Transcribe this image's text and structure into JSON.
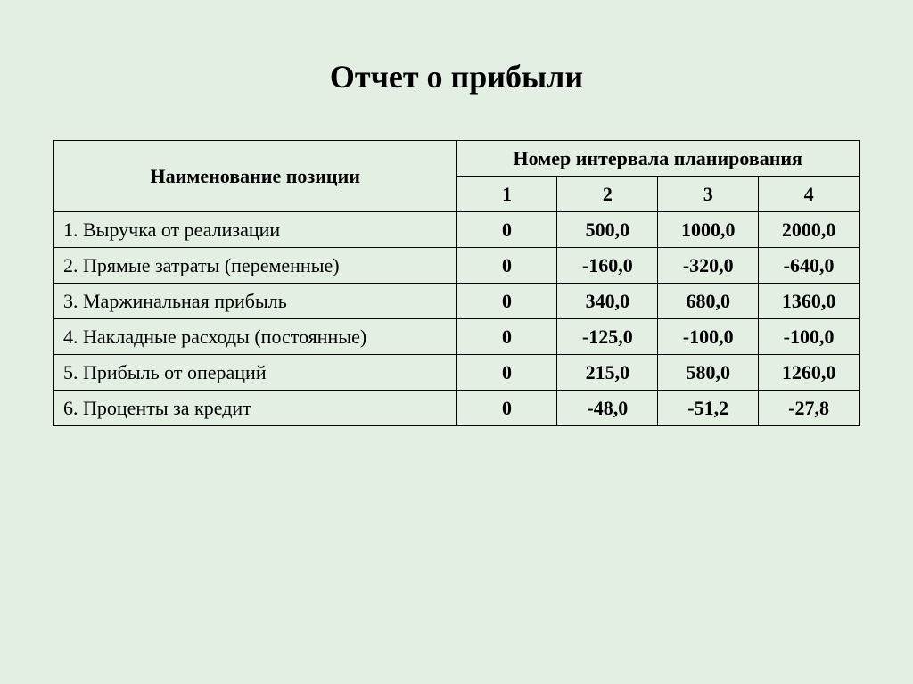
{
  "title": "Отчет о прибыли",
  "table": {
    "type": "table",
    "header": {
      "position_name": "Наименование позиции",
      "interval_group": "Номер интервала планирования",
      "intervals": [
        "1",
        "2",
        "3",
        "4"
      ]
    },
    "rows": [
      {
        "label": "1. Выручка от реализации",
        "values": [
          "0",
          "500,0",
          "1000,0",
          "2000,0"
        ]
      },
      {
        "label": "2. Прямые затраты (переменные)",
        "values": [
          "0",
          "-160,0",
          "-320,0",
          "-640,0"
        ]
      },
      {
        "label": "3. Маржинальная прибыль",
        "values": [
          "0",
          "340,0",
          "680,0",
          "1360,0"
        ]
      },
      {
        "label": "4. Накладные расходы (постоянные)",
        "values": [
          "0",
          "-125,0",
          "-100,0",
          "-100,0"
        ]
      },
      {
        "label": "5. Прибыль от операций",
        "values": [
          "0",
          "215,0",
          "580,0",
          "1260,0"
        ]
      },
      {
        "label": "6. Проценты за кредит",
        "values": [
          "0",
          "-48,0",
          "-51,2",
          "-27,8"
        ]
      }
    ],
    "columns": {
      "name_width_pct": 50,
      "num_width_pct": 12.5,
      "alignments": [
        "left",
        "center",
        "center",
        "center",
        "center"
      ]
    },
    "colors": {
      "background": "#e4efe4",
      "border": "#000000",
      "text": "#000000"
    },
    "fonts": {
      "title_fontsize": 36,
      "title_weight": "bold",
      "cell_fontsize": 22,
      "header_weight": "bold",
      "data_weight": "bold",
      "label_weight": "normal",
      "family": "Times New Roman"
    }
  }
}
